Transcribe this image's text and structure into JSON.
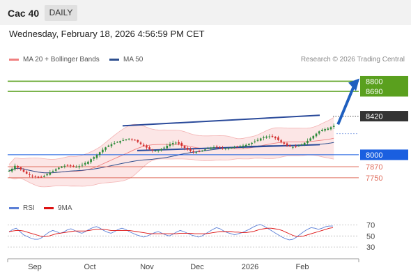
{
  "header": {
    "symbol": "Cac 40",
    "period": "DAILY",
    "datetime": "Wednesday, February 18, 2026 4:56:59 PM CET"
  },
  "legend": {
    "ma20": {
      "label": "MA 20 + Bollinger Bands",
      "color": "#f08080"
    },
    "ma50": {
      "label": "MA 50",
      "color": "#2e4f8f"
    }
  },
  "credit": "Research © 2026 Trading Central",
  "rsi_legend": {
    "rsi": {
      "label": "RSI",
      "color": "#5b7fd6"
    },
    "ma9": {
      "label": "9MA",
      "color": "#dd1111"
    }
  },
  "chart_data": {
    "type": "candlestick",
    "price_range": [
      7620,
      8940
    ],
    "x_labels": [
      "Sep",
      "Oct",
      "Nov",
      "Dec",
      "2026",
      "Feb"
    ],
    "levels": [
      {
        "value": 8800,
        "label": "8800",
        "kind": "resistance",
        "color": "#5aa01e"
      },
      {
        "value": 8690,
        "label": "8690",
        "kind": "resistance",
        "color": "#5aa01e"
      },
      {
        "value": 8420,
        "label": "8420",
        "kind": "pivot",
        "color": "#333333"
      },
      {
        "value": 8000,
        "label": "8000",
        "kind": "support",
        "color": "#1a5fe0"
      },
      {
        "value": 7870,
        "label": "7870",
        "kind": "support",
        "color": "#e07060"
      },
      {
        "value": 7750,
        "label": "7750",
        "kind": "support",
        "color": "#e07060"
      }
    ],
    "closes": [
      7825,
      7848,
      7880,
      7862,
      7840,
      7815,
      7795,
      7780,
      7770,
      7758,
      7752,
      7760,
      7772,
      7790,
      7808,
      7825,
      7842,
      7860,
      7872,
      7880,
      7885,
      7880,
      7872,
      7868,
      7876,
      7890,
      7910,
      7925,
      7952,
      7975,
      8000,
      8028,
      8055,
      8080,
      8100,
      8115,
      8128,
      8140,
      8150,
      8160,
      8168,
      8175,
      8170,
      8158,
      8140,
      8118,
      8098,
      8078,
      8060,
      8048,
      8045,
      8050,
      8062,
      8078,
      8098,
      8115,
      8128,
      8132,
      8120,
      8098,
      8075,
      8055,
      8040,
      8030,
      8028,
      8035,
      8045,
      8058,
      8070,
      8078,
      8082,
      8080,
      8075,
      8072,
      8070,
      8072,
      8078,
      8085,
      8090,
      8095,
      8100,
      8108,
      8118,
      8130,
      8145,
      8162,
      8178,
      8190,
      8198,
      8200,
      8195,
      8180,
      8160,
      8140,
      8120,
      8100,
      8090,
      8085,
      8088,
      8098,
      8112,
      8130,
      8152,
      8178,
      8205,
      8230,
      8255,
      8272,
      8280,
      8285,
      8300,
      8315
    ],
    "last_close": 8315,
    "forecast": {
      "from": 8330,
      "to": 8800
    },
    "rsi": {
      "levels": [
        70,
        50,
        30
      ],
      "range": [
        15,
        82
      ],
      "rsi_values": [
        57,
        62,
        64,
        58,
        52,
        49,
        46,
        44,
        44,
        47,
        52,
        57,
        60,
        58,
        55,
        57,
        61,
        63,
        60,
        57,
        55,
        58,
        62,
        65,
        67,
        64,
        60,
        57,
        55,
        58,
        62,
        64,
        62,
        58,
        55,
        52,
        50,
        48,
        50,
        53,
        56,
        58,
        55,
        52,
        50,
        53,
        57,
        60,
        58,
        55,
        52,
        50,
        48,
        50,
        54,
        58,
        62,
        65,
        63,
        59,
        56,
        54,
        52,
        54,
        56,
        59,
        62,
        66,
        69,
        71,
        68,
        64,
        60,
        56,
        52,
        48,
        45,
        43,
        44,
        48,
        53,
        58,
        62,
        65,
        64,
        62,
        64,
        67,
        68,
        68
      ],
      "ma9_values": [
        58,
        59,
        60,
        60,
        59,
        57,
        55,
        53,
        51,
        49,
        49,
        50,
        52,
        54,
        55,
        56,
        57,
        58,
        59,
        59,
        59,
        59,
        60,
        61,
        62,
        62,
        62,
        61,
        60,
        60,
        60,
        60,
        60,
        60,
        59,
        58,
        57,
        56,
        55,
        54,
        54,
        54,
        54,
        54,
        54,
        54,
        54,
        55,
        55,
        55,
        55,
        54,
        54,
        54,
        54,
        55,
        56,
        57,
        58,
        58,
        58,
        58,
        57,
        57,
        56,
        56,
        57,
        58,
        60,
        62,
        63,
        64,
        64,
        63,
        62,
        60,
        57,
        54,
        51,
        49,
        49,
        50,
        52,
        54,
        56,
        58,
        60,
        62,
        64,
        65
      ]
    }
  }
}
